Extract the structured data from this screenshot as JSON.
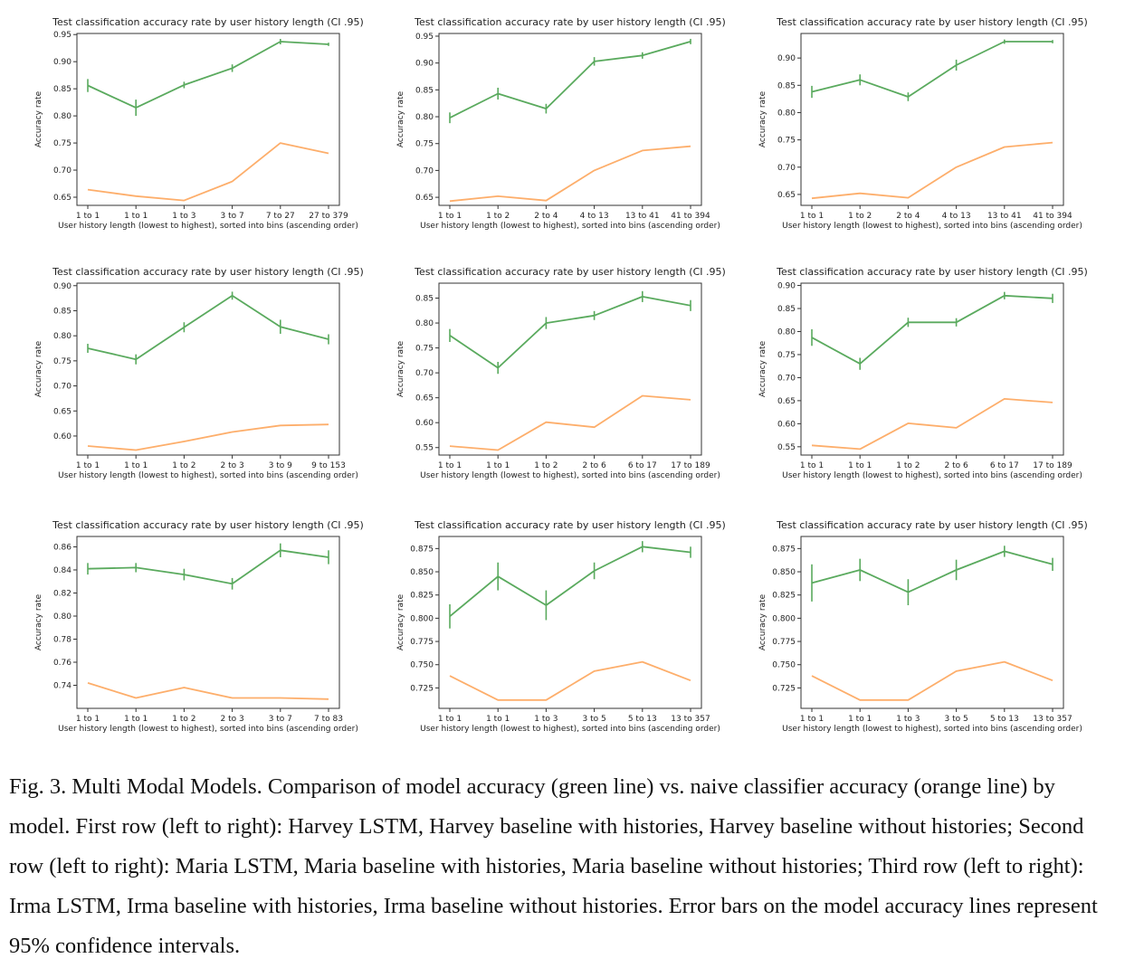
{
  "caption": "Fig. 3.  Multi Modal Models. Comparison of model accuracy (green line) vs. naive classifier accuracy (orange line) by model. First row (left to right): Harvey LSTM, Harvey baseline with histories, Harvey baseline without histories; Second row (left to right): Maria LSTM, Maria baseline with histories, Maria baseline without histories; Third row (left to right): Irma LSTM, Irma baseline with histories, Irma baseline without histories. Error bars on the model accuracy lines represent 95% confidence intervals.",
  "colors": {
    "model": "#5aaa5e",
    "naive": "#fdae6b",
    "axis": "#333333"
  },
  "chart_data": [
    {
      "type": "line",
      "title": "Test classification accuracy rate by user history length (CI .95)",
      "xlabel": "User history length (lowest to highest), sorted into bins (ascending order)",
      "ylabel": "Accuracy rate",
      "categories": [
        "1 to 1",
        "1 to 1",
        "1 to 3",
        "3 to 7",
        "7 to 27",
        "27 to 379"
      ],
      "ylim": [
        0.635,
        0.952
      ],
      "yticks": [
        0.65,
        0.7,
        0.75,
        0.8,
        0.85,
        0.9,
        0.95
      ],
      "ytick_labels": [
        "0.65",
        "0.70",
        "0.75",
        "0.80",
        "0.85",
        "0.90",
        "0.95"
      ],
      "series": [
        {
          "values": [
            0.856,
            0.815,
            0.857,
            0.888,
            0.937,
            0.932
          ],
          "err": [
            0.012,
            0.015,
            0.006,
            0.007,
            0.005,
            0.003
          ]
        },
        {
          "values": [
            0.664,
            0.652,
            0.644,
            0.679,
            0.75,
            0.731
          ],
          "err": null
        }
      ]
    },
    {
      "type": "line",
      "title": "Test classification accuracy rate by user history length (CI .95)",
      "xlabel": "User history length (lowest to highest), sorted into bins (ascending order)",
      "ylabel": "Accuracy rate",
      "categories": [
        "1 to 1",
        "1 to 2",
        "2 to 4",
        "4 to 13",
        "13 to 41",
        "41 to 394"
      ],
      "ylim": [
        0.635,
        0.955
      ],
      "yticks": [
        0.65,
        0.7,
        0.75,
        0.8,
        0.85,
        0.9,
        0.95
      ],
      "ytick_labels": [
        "0.65",
        "0.70",
        "0.75",
        "0.80",
        "0.85",
        "0.90",
        "0.95"
      ],
      "series": [
        {
          "values": [
            0.798,
            0.843,
            0.815,
            0.903,
            0.914,
            0.94
          ],
          "err": [
            0.01,
            0.011,
            0.009,
            0.008,
            0.006,
            0.005
          ]
        },
        {
          "values": [
            0.643,
            0.652,
            0.644,
            0.7,
            0.737,
            0.745
          ],
          "err": null
        }
      ]
    },
    {
      "type": "line",
      "title": "Test classification accuracy rate by user history length (CI .95)",
      "xlabel": "User history length (lowest to highest), sorted into bins (ascending order)",
      "ylabel": "Accuracy rate",
      "categories": [
        "1 to 1",
        "1 to 2",
        "2 to 4",
        "4 to 13",
        "13 to 41",
        "41 to 394"
      ],
      "ylim": [
        0.63,
        0.945
      ],
      "yticks": [
        0.65,
        0.7,
        0.75,
        0.8,
        0.85,
        0.9
      ],
      "ytick_labels": [
        "0.65",
        "0.70",
        "0.75",
        "0.80",
        "0.85",
        "0.90"
      ],
      "series": [
        {
          "values": [
            0.838,
            0.86,
            0.829,
            0.887,
            0.93,
            0.93
          ],
          "err": [
            0.011,
            0.01,
            0.008,
            0.01,
            0.004,
            0.003
          ]
        },
        {
          "values": [
            0.643,
            0.652,
            0.644,
            0.7,
            0.737,
            0.745
          ],
          "err": null
        }
      ]
    },
    {
      "type": "line",
      "title": "Test classification accuracy rate by user history length (CI .95)",
      "xlabel": "User history length (lowest to highest), sorted into bins (ascending order)",
      "ylabel": "Accuracy rate",
      "categories": [
        "1 to 1",
        "1 to 1",
        "1 to 2",
        "2 to 3",
        "3 to 9",
        "9 to 153"
      ],
      "ylim": [
        0.562,
        0.905
      ],
      "yticks": [
        0.6,
        0.65,
        0.7,
        0.75,
        0.8,
        0.85,
        0.9
      ],
      "ytick_labels": [
        "0.60",
        "0.65",
        "0.70",
        "0.75",
        "0.80",
        "0.85",
        "0.90"
      ],
      "series": [
        {
          "values": [
            0.775,
            0.753,
            0.817,
            0.88,
            0.818,
            0.793
          ],
          "err": [
            0.009,
            0.01,
            0.01,
            0.008,
            0.014,
            0.01
          ]
        },
        {
          "values": [
            0.58,
            0.572,
            0.589,
            0.608,
            0.621,
            0.623
          ],
          "err": null
        }
      ]
    },
    {
      "type": "line",
      "title": "Test classification accuracy rate by user history length (CI .95)",
      "xlabel": "User history length (lowest to highest), sorted into bins (ascending order)",
      "ylabel": "Accuracy rate",
      "categories": [
        "1 to 1",
        "1 to 1",
        "1 to 2",
        "2 to 6",
        "6 to 17",
        "17 to 189"
      ],
      "ylim": [
        0.535,
        0.88
      ],
      "yticks": [
        0.55,
        0.6,
        0.65,
        0.7,
        0.75,
        0.8,
        0.85
      ],
      "ytick_labels": [
        "0.55",
        "0.60",
        "0.65",
        "0.70",
        "0.75",
        "0.80",
        "0.85"
      ],
      "series": [
        {
          "values": [
            0.775,
            0.71,
            0.8,
            0.815,
            0.853,
            0.835
          ],
          "err": [
            0.013,
            0.012,
            0.012,
            0.009,
            0.011,
            0.011
          ]
        },
        {
          "values": [
            0.553,
            0.545,
            0.601,
            0.591,
            0.654,
            0.646
          ],
          "err": null
        }
      ]
    },
    {
      "type": "line",
      "title": "Test classification accuracy rate by user history length (CI .95)",
      "xlabel": "User history length (lowest to highest), sorted into bins (ascending order)",
      "ylabel": "Accuracy rate",
      "categories": [
        "1 to 1",
        "1 to 1",
        "1 to 2",
        "2 to 6",
        "6 to 17",
        "17 to 189"
      ],
      "ylim": [
        0.532,
        0.905
      ],
      "yticks": [
        0.55,
        0.6,
        0.65,
        0.7,
        0.75,
        0.8,
        0.85,
        0.9
      ],
      "ytick_labels": [
        "0.55",
        "0.60",
        "0.65",
        "0.70",
        "0.75",
        "0.80",
        "0.85",
        "0.90"
      ],
      "series": [
        {
          "values": [
            0.787,
            0.73,
            0.82,
            0.82,
            0.878,
            0.872
          ],
          "err": [
            0.018,
            0.013,
            0.01,
            0.009,
            0.008,
            0.01
          ]
        },
        {
          "values": [
            0.553,
            0.545,
            0.601,
            0.591,
            0.654,
            0.646
          ],
          "err": null
        }
      ]
    },
    {
      "type": "line",
      "title": "Test classification accuracy rate by user history length (CI .95)",
      "xlabel": "User history length (lowest to highest), sorted into bins (ascending order)",
      "ylabel": "Accuracy rate",
      "categories": [
        "1 to 1",
        "1 to 1",
        "1 to 2",
        "2 to 3",
        "3 to 7",
        "7 to 83"
      ],
      "ylim": [
        0.72,
        0.869
      ],
      "yticks": [
        0.74,
        0.76,
        0.78,
        0.8,
        0.82,
        0.84,
        0.86
      ],
      "ytick_labels": [
        "0.74",
        "0.76",
        "0.78",
        "0.80",
        "0.82",
        "0.84",
        "0.86"
      ],
      "series": [
        {
          "values": [
            0.841,
            0.842,
            0.836,
            0.828,
            0.857,
            0.851
          ],
          "err": [
            0.005,
            0.004,
            0.005,
            0.005,
            0.006,
            0.006
          ]
        },
        {
          "values": [
            0.742,
            0.729,
            0.738,
            0.729,
            0.729,
            0.728
          ],
          "err": null
        }
      ]
    },
    {
      "type": "line",
      "title": "Test classification accuracy rate by user history length (CI .95)",
      "xlabel": "User history length (lowest to highest), sorted into bins (ascending order)",
      "ylabel": "Accuracy rate",
      "categories": [
        "1 to 1",
        "1 to 1",
        "1 to 3",
        "3 to 5",
        "5 to 13",
        "13 to 357"
      ],
      "ylim": [
        0.703,
        0.888
      ],
      "yticks": [
        0.725,
        0.75,
        0.775,
        0.8,
        0.825,
        0.85,
        0.875
      ],
      "ytick_labels": [
        "0.725",
        "0.750",
        "0.775",
        "0.800",
        "0.825",
        "0.850",
        "0.875"
      ],
      "series": [
        {
          "values": [
            0.802,
            0.845,
            0.814,
            0.851,
            0.877,
            0.871
          ],
          "err": [
            0.013,
            0.015,
            0.016,
            0.009,
            0.006,
            0.006
          ]
        },
        {
          "values": [
            0.738,
            0.712,
            0.712,
            0.743,
            0.753,
            0.733
          ],
          "err": null
        }
      ]
    },
    {
      "type": "line",
      "title": "Test classification accuracy rate by user history length (CI .95)",
      "xlabel": "User history length (lowest to highest), sorted into bins (ascending order)",
      "ylabel": "Accuracy rate",
      "categories": [
        "1 to 1",
        "1 to 1",
        "1 to 3",
        "3 to 5",
        "5 to 13",
        "13 to 357"
      ],
      "ylim": [
        0.703,
        0.888
      ],
      "yticks": [
        0.725,
        0.75,
        0.775,
        0.8,
        0.825,
        0.85,
        0.875
      ],
      "ytick_labels": [
        "0.725",
        "0.750",
        "0.775",
        "0.800",
        "0.825",
        "0.850",
        "0.875"
      ],
      "series": [
        {
          "values": [
            0.838,
            0.852,
            0.828,
            0.852,
            0.872,
            0.858
          ],
          "err": [
            0.02,
            0.012,
            0.014,
            0.011,
            0.006,
            0.007
          ]
        },
        {
          "values": [
            0.738,
            0.712,
            0.712,
            0.743,
            0.753,
            0.733
          ],
          "err": null
        }
      ]
    }
  ]
}
